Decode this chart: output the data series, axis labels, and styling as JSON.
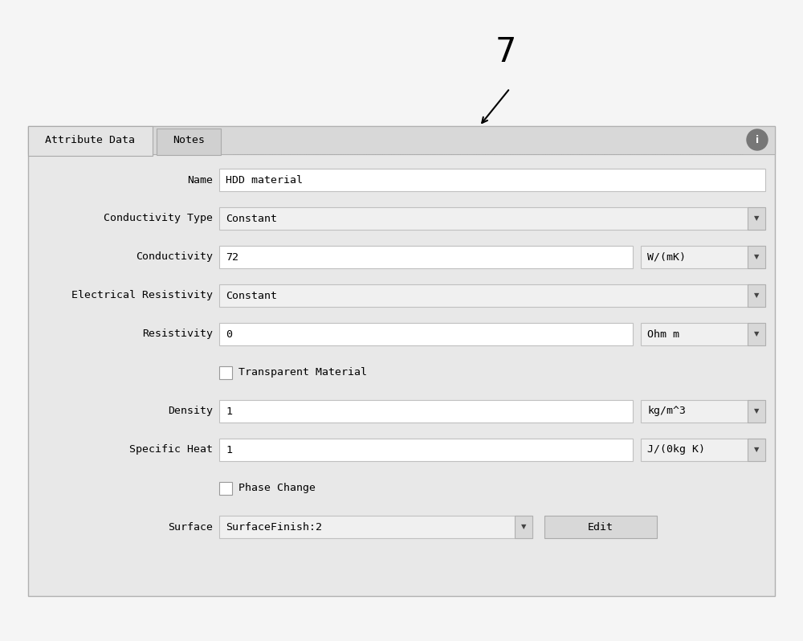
{
  "outer_bg": "#f5f5f5",
  "panel_bg": "#e8e8e8",
  "tab_bar_bg": "#d8d8d8",
  "tab1_bg": "#e4e4e4",
  "tab2_bg": "#d0d0d0",
  "field_bg": "#f8f8f8",
  "field_bg_light": "#ffffff",
  "field_border": "#c0c0c0",
  "dropdown_btn_bg": "#d8d8d8",
  "button_bg": "#d8d8d8",
  "title_number": "7",
  "tab1": "Attribute Data",
  "tab2": "Notes",
  "rows": [
    {
      "label": "Name",
      "value": "HDD material",
      "unit": "",
      "type": "text"
    },
    {
      "label": "Conductivity Type",
      "value": "Constant",
      "unit": "",
      "type": "dropdown_full"
    },
    {
      "label": "Conductivity",
      "value": "72",
      "unit": "W/(mK)",
      "type": "text_unit"
    },
    {
      "label": "Electrical Resistivity",
      "value": "Constant",
      "unit": "",
      "type": "dropdown_full"
    },
    {
      "label": "Resistivity",
      "value": "0",
      "unit": "Ohm m",
      "type": "text_unit"
    },
    {
      "label": "",
      "value": "Transparent Material",
      "unit": "",
      "type": "checkbox"
    },
    {
      "label": "Density",
      "value": "1",
      "unit": "kg/m^3",
      "type": "text_unit"
    },
    {
      "label": "Specific Heat",
      "value": "1",
      "unit": "J/(0kg K)",
      "type": "text_unit"
    },
    {
      "label": "",
      "value": "Phase Change",
      "unit": "",
      "type": "checkbox"
    },
    {
      "label": "Surface",
      "value": "SurfaceFinish:2",
      "unit": "",
      "type": "surface"
    }
  ],
  "font_family": "monospace",
  "label_fontsize": 9.5,
  "value_fontsize": 9.5
}
